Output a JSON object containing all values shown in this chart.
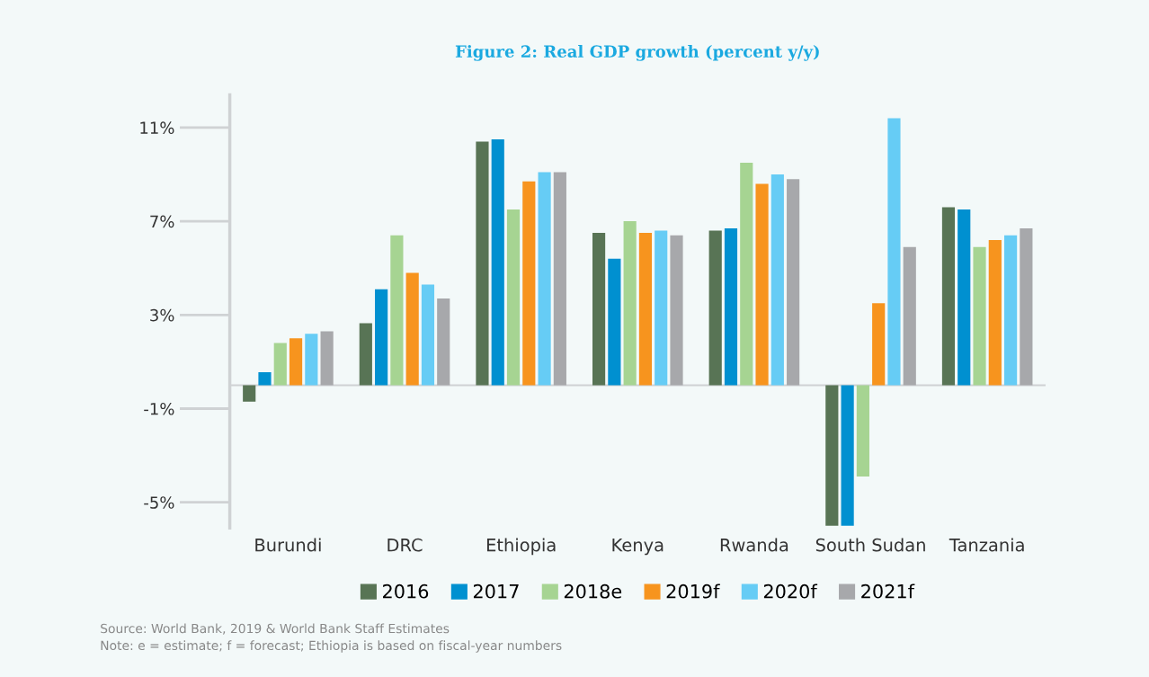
{
  "chart_data": {
    "type": "bar",
    "title": "Figure 2: Real GDP growth (percent y/y)",
    "categories": [
      "Burundi",
      "DRC",
      "Ethiopia",
      "Kenya",
      "Rwanda",
      "South Sudan",
      "Tanzania"
    ],
    "series": [
      {
        "name": "2016",
        "color": "#587455",
        "values": [
          -0.7,
          2.65,
          10.4,
          6.5,
          6.6,
          -6.0,
          7.6
        ]
      },
      {
        "name": "2017",
        "color": "#0090d0",
        "values": [
          0.55,
          4.1,
          10.5,
          5.4,
          6.7,
          -6.0,
          7.5
        ]
      },
      {
        "name": "2018e",
        "color": "#a6d492",
        "values": [
          1.8,
          6.4,
          7.5,
          7.0,
          9.5,
          -3.9,
          5.9
        ]
      },
      {
        "name": "2019f",
        "color": "#f7941e",
        "values": [
          2.0,
          4.8,
          8.7,
          6.5,
          8.6,
          3.5,
          6.2
        ]
      },
      {
        "name": "2020f",
        "color": "#66ccf5",
        "values": [
          2.2,
          4.3,
          9.1,
          6.6,
          9.0,
          11.4,
          6.4
        ]
      },
      {
        "name": "2021f",
        "color": "#a7a8ab",
        "values": [
          2.3,
          3.7,
          9.1,
          6.4,
          8.8,
          5.9,
          6.7
        ]
      }
    ],
    "ylim": [
      -6.1,
      12.4
    ],
    "yticks": [
      {
        "value": -5,
        "label": "-5%"
      },
      {
        "value": -1,
        "label": "-1%"
      },
      {
        "value": 3,
        "label": "3%"
      },
      {
        "value": 7,
        "label": "7%"
      },
      {
        "value": 11,
        "label": "11%"
      }
    ],
    "ref_lines": [
      {
        "axis": "y",
        "value": 0,
        "color": "#cfd2d4"
      }
    ],
    "grid": false,
    "legend": "bottom",
    "annotations": [
      "Source: World Bank, 2019 & World Bank Staff Estimates",
      "Note: e = estimate; f = forecast; Ethiopia is based on fiscal-year numbers"
    ]
  }
}
